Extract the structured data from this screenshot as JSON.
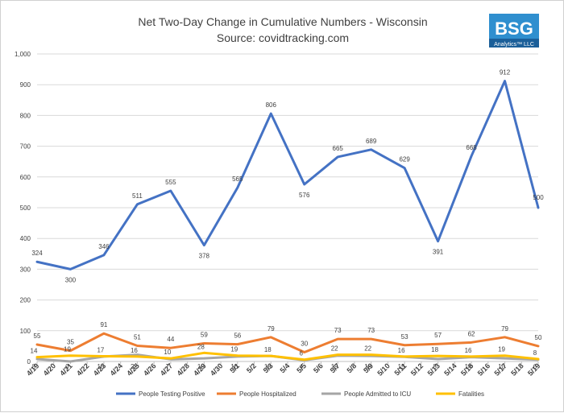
{
  "chart_data": {
    "type": "line",
    "title": "Net Two-Day Change in Cumulative Numbers - Wisconsin",
    "subtitle": "Source: covidtracking.com",
    "xlabel": "",
    "ylabel": "",
    "ylim": [
      0,
      1000
    ],
    "yticks": [
      "0",
      "100",
      "200",
      "300",
      "400",
      "500",
      "600",
      "700",
      "800",
      "900",
      "1,000"
    ],
    "grid": true,
    "legend_position": "bottom",
    "x_labels": [
      "4/19",
      "4/20",
      "4/21",
      "4/22",
      "4/23",
      "4/24",
      "4/25",
      "4/26",
      "4/27",
      "4/28",
      "4/29",
      "4/30",
      "5/1",
      "5/2",
      "5/3",
      "5/4",
      "5/5",
      "5/6",
      "5/7",
      "5/8",
      "5/9",
      "5/10",
      "5/11",
      "5/12",
      "5/13",
      "5/14",
      "5/15",
      "5/16",
      "5/17",
      "5/18",
      "5/19"
    ],
    "x": [
      "4/19",
      "4/21",
      "4/23",
      "4/25",
      "4/27",
      "4/29",
      "5/1",
      "5/3",
      "5/5",
      "5/7",
      "5/9",
      "5/11",
      "5/13",
      "5/15",
      "5/17",
      "5/19"
    ],
    "series": [
      {
        "name": "People Testing Positive",
        "color": "#4472C4",
        "values": [
          324,
          300,
          346,
          511,
          555,
          378,
          565,
          806,
          576,
          665,
          689,
          629,
          391,
          668,
          912,
          500
        ]
      },
      {
        "name": "People Hospitalized",
        "color": "#ED7D31",
        "values": [
          55,
          35,
          91,
          51,
          44,
          59,
          56,
          79,
          30,
          73,
          73,
          53,
          57,
          62,
          79,
          50
        ]
      },
      {
        "name": "People Admitted to ICU",
        "color": "#A5A5A5",
        "values": [
          8,
          0,
          16,
          22,
          7,
          10,
          16,
          18,
          4,
          19,
          18,
          15,
          8,
          14,
          10,
          6
        ]
      },
      {
        "name": "Fatalities",
        "color": "#FFC000",
        "values": [
          14,
          19,
          17,
          16,
          10,
          28,
          19,
          18,
          6,
          22,
          22,
          16,
          18,
          16,
          19,
          8
        ]
      }
    ]
  },
  "logo": {
    "letters": "BSG",
    "tagline": "Analytics™ LLC"
  }
}
